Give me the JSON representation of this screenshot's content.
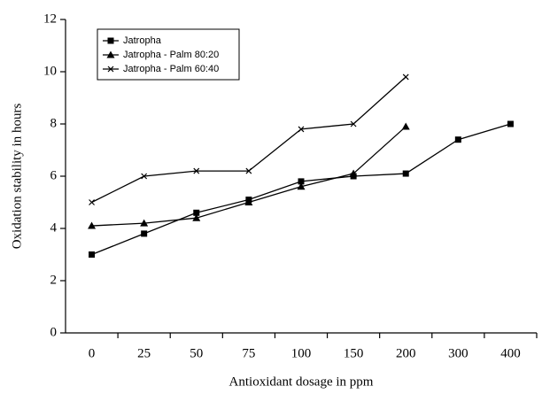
{
  "chart_data": {
    "type": "line",
    "x_label": "Antioxidant dosage in ppm",
    "y_label": "Oxidation stability in hours",
    "categories": [
      "0",
      "25",
      "50",
      "75",
      "100",
      "150",
      "200",
      "300",
      "400"
    ],
    "series": [
      {
        "name": "Jatropha",
        "color": "#000000",
        "marker": "square",
        "values": [
          3.0,
          3.8,
          4.6,
          5.1,
          5.8,
          6.0,
          6.1,
          7.4,
          8.0
        ]
      },
      {
        "name": "Jatropha - Palm 80:20",
        "color": "#000000",
        "marker": "triangle",
        "values": [
          4.1,
          4.2,
          4.4,
          5.0,
          5.6,
          6.1,
          7.9,
          null,
          null
        ]
      },
      {
        "name": "Jatropha - Palm 60:40",
        "color": "#000000",
        "marker": "x",
        "values": [
          5.0,
          6.0,
          6.2,
          6.2,
          7.8,
          8.0,
          9.8,
          null,
          null
        ]
      }
    ],
    "ylim": [
      0,
      12
    ],
    "yticks": [
      0,
      2,
      4,
      6,
      8,
      10,
      12
    ],
    "grid": false,
    "legend": "upper left"
  }
}
